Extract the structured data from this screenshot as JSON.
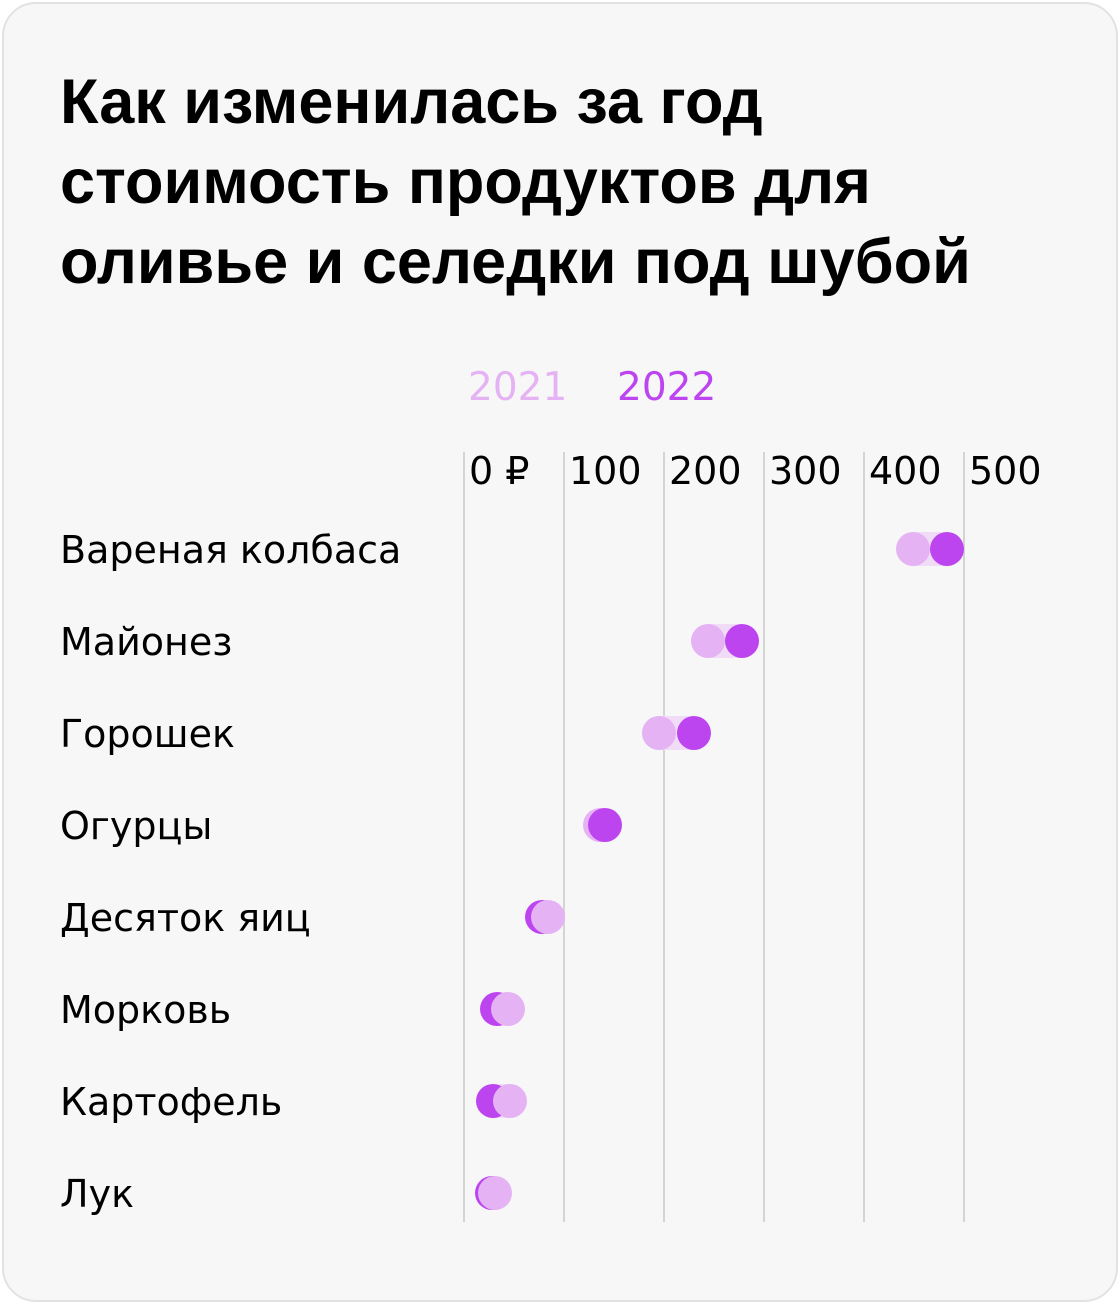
{
  "chart_data": {
    "type": "scatter",
    "title": "Как изменилась за год стоимость продуктов для оливье и селедки под шубой",
    "title_lines": [
      "Как изменилась за год",
      "стоимость продуктов для",
      "оливье и селедки под шубой"
    ],
    "x_ticks": [
      0,
      100,
      200,
      300,
      400,
      500
    ],
    "x_tick_labels": [
      "0 ₽",
      "100",
      "200",
      "300",
      "400",
      "500"
    ],
    "xlim": [
      0,
      500
    ],
    "grid": true,
    "legend_placement": "top",
    "categories": [
      "Вареная колбаса",
      "Майонез",
      "Горошек",
      "Огурцы",
      "Десяток яиц",
      "Морковь",
      "Картофель",
      "Лук"
    ],
    "series": [
      {
        "name": "2021",
        "color": "#e5b2f4",
        "values": [
          449,
          244,
          195,
          136,
          84,
          44,
          46,
          31
        ]
      },
      {
        "name": "2022",
        "color": "#bd45ef",
        "values": [
          483,
          278,
          230,
          141,
          78,
          33,
          29,
          28
        ]
      }
    ]
  }
}
